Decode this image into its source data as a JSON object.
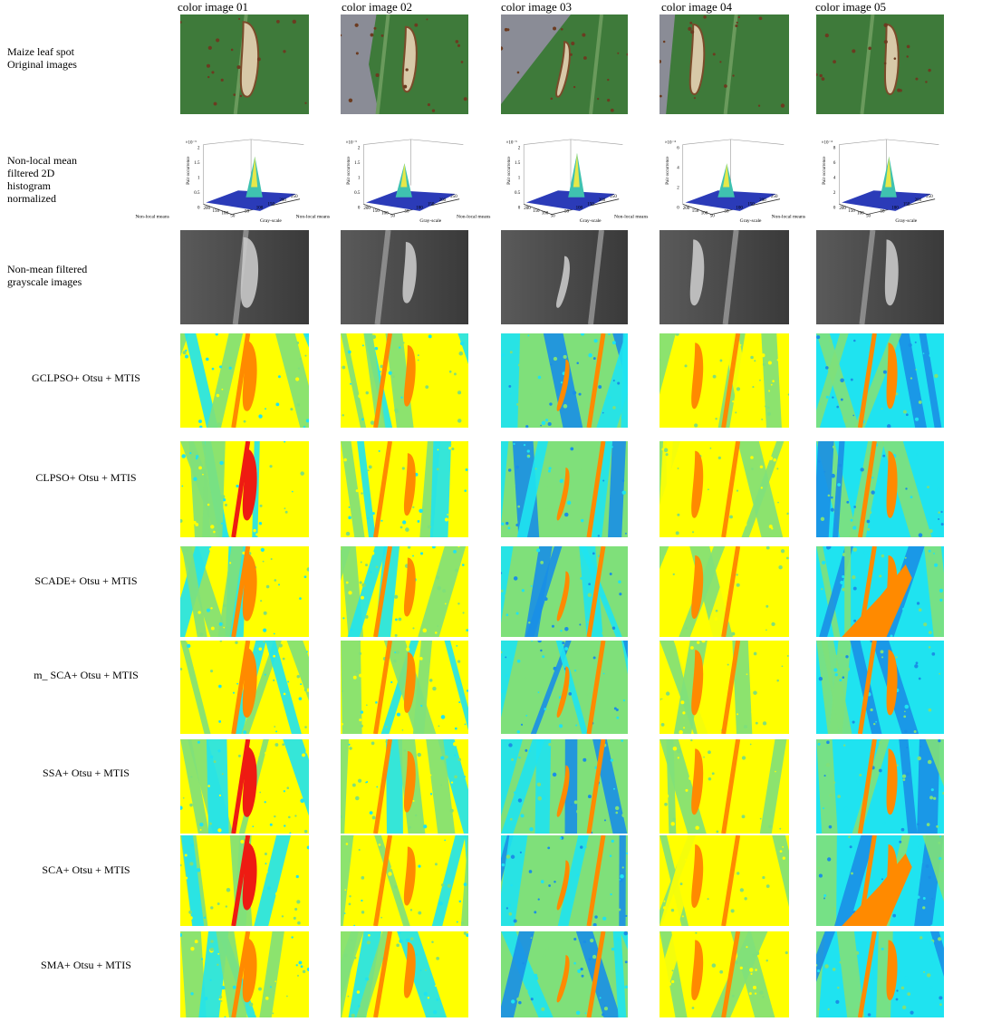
{
  "column_headers": [
    "color image 01",
    "color image 02",
    "color image 03",
    "color image 04",
    "color image 05"
  ],
  "rows": [
    {
      "label_lines": [
        "Maize leaf spot",
        "Original images"
      ],
      "kind": "photo"
    },
    {
      "label_lines": [
        "Non-local mean",
        "filtered 2D",
        "histogram",
        "normalized"
      ],
      "kind": "histogram"
    },
    {
      "label_lines": [
        "Non-mean filtered",
        "grayscale images"
      ],
      "kind": "grayscale"
    },
    {
      "label_lines": [
        "GCLPSO+ Otsu + MTIS"
      ],
      "kind": "segmentation"
    },
    {
      "label_lines": [
        "CLPSO+ Otsu + MTIS"
      ],
      "kind": "segmentation"
    },
    {
      "label_lines": [
        "SCADE+ Otsu + MTIS"
      ],
      "kind": "segmentation"
    },
    {
      "label_lines": [
        "m_ SCA+ Otsu + MTIS"
      ],
      "kind": "segmentation"
    },
    {
      "label_lines": [
        "SSA+ Otsu + MTIS"
      ],
      "kind": "segmentation"
    },
    {
      "label_lines": [
        "SCA+ Otsu + MTIS"
      ],
      "kind": "segmentation"
    },
    {
      "label_lines": [
        "SMA+ Otsu + MTIS"
      ],
      "kind": "segmentation"
    }
  ],
  "histogram_axes": {
    "z_label": "Pair occurrence",
    "x_label": "Gray-scale",
    "y_label": "Non-local means",
    "x_ticks": [
      "50",
      "100",
      "150",
      "200",
      "250"
    ],
    "y_ticks": [
      "200",
      "150",
      "100",
      "50"
    ],
    "z_ticks": [
      [
        "2",
        "1.5",
        "1",
        "0.5",
        "0"
      ],
      [
        "2",
        "1.5",
        "1",
        "0.5",
        "0"
      ],
      [
        "2",
        "1.5",
        "1",
        "0.5",
        "0"
      ],
      [
        "6",
        "4",
        "2",
        "0"
      ],
      [
        "8",
        "6",
        "4",
        "2",
        "0"
      ]
    ],
    "exponent": [
      "×10⁻³",
      "×10⁻³",
      "×10⁻³",
      "×10⁻⁴",
      "×10⁻⁴"
    ]
  },
  "segmentation_colors": {
    "yellow": "#ffff00",
    "green": "#7fe07a",
    "cyan": "#1fe3f0",
    "blue": "#1a8fe6",
    "orange": "#ff8a00",
    "red": "#ee1b12"
  },
  "photo_colors": {
    "leaf": "#3e7a3a",
    "leaf_light": "#6a9a5c",
    "lesion": "#d8c9a8",
    "background": "#8a8c96"
  }
}
